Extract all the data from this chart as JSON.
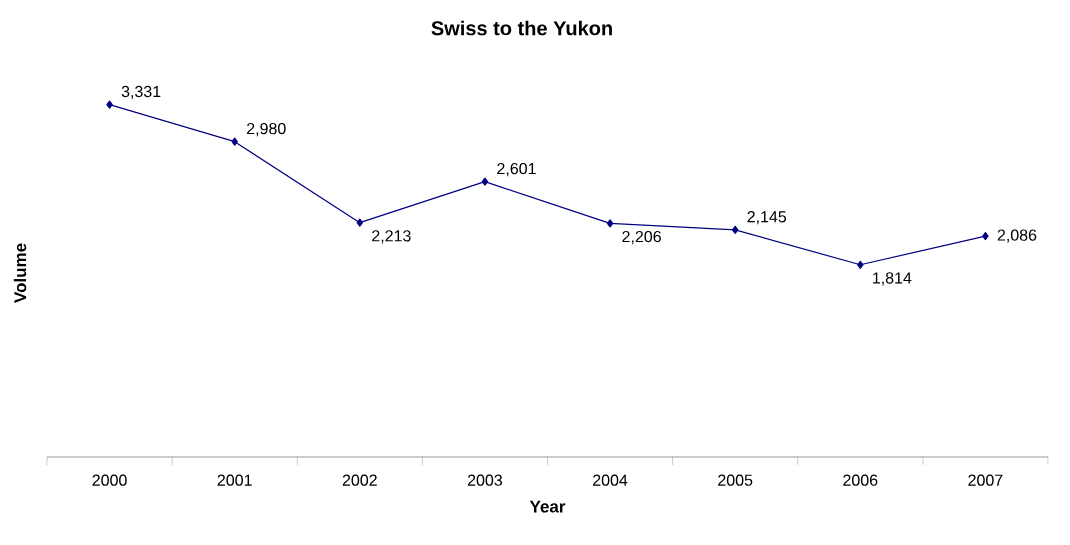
{
  "chart_data": {
    "type": "line",
    "title": "Swiss to the Yukon",
    "xlabel": "Year",
    "ylabel": "Volume",
    "categories": [
      "2000",
      "2001",
      "2002",
      "2003",
      "2004",
      "2005",
      "2006",
      "2007"
    ],
    "values": [
      3331,
      2980,
      2213,
      2601,
      2206,
      2145,
      1814,
      2086
    ],
    "value_labels": [
      "3,331",
      "2,980",
      "2,213",
      "2,601",
      "2,206",
      "2,145",
      "1,814",
      "2,086"
    ],
    "color": "#000080",
    "marker": "diamond",
    "line_style": "solid"
  }
}
